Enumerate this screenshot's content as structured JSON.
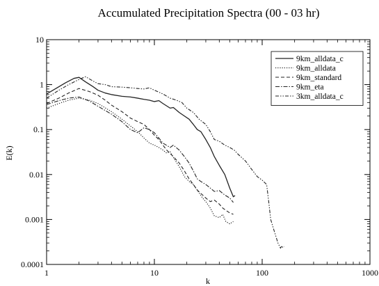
{
  "chart_data": {
    "type": "line",
    "title": "Accumulated Precipitation Spectra (00 - 03 hr)",
    "xlabel": "k",
    "ylabel": "E(k)",
    "xscale": "log",
    "yscale": "log",
    "xlim": [
      1,
      1000
    ],
    "ylim": [
      0.0001,
      10
    ],
    "x_ticks": [
      "1",
      "10",
      "100",
      "1000"
    ],
    "y_ticks": [
      "0.0001",
      "0.001",
      "0.01",
      "0.1",
      "1",
      "10"
    ],
    "grid": false,
    "legend_position": "top-right",
    "series": [
      {
        "name": "9km_alldata_c",
        "style": "solid",
        "points": [
          [
            1,
            0.62
          ],
          [
            1.2,
            0.8
          ],
          [
            1.5,
            1.1
          ],
          [
            1.8,
            1.38
          ],
          [
            2,
            1.45
          ],
          [
            2.3,
            1.15
          ],
          [
            2.7,
            0.9
          ],
          [
            3,
            0.75
          ],
          [
            3.5,
            0.65
          ],
          [
            4,
            0.6
          ],
          [
            5,
            0.55
          ],
          [
            6,
            0.53
          ],
          [
            7,
            0.5
          ],
          [
            8,
            0.47
          ],
          [
            9,
            0.45
          ],
          [
            10,
            0.42
          ],
          [
            11,
            0.44
          ],
          [
            12,
            0.38
          ],
          [
            14,
            0.3
          ],
          [
            15,
            0.31
          ],
          [
            17,
            0.24
          ],
          [
            19,
            0.2
          ],
          [
            21,
            0.17
          ],
          [
            23,
            0.13
          ],
          [
            25,
            0.1
          ],
          [
            27,
            0.09
          ],
          [
            30,
            0.06
          ],
          [
            33,
            0.04
          ],
          [
            36,
            0.025
          ],
          [
            40,
            0.016
          ],
          [
            45,
            0.01
          ],
          [
            50,
            0.005
          ],
          [
            54,
            0.0032
          ],
          [
            56,
            0.0034
          ]
        ]
      },
      {
        "name": "9km_alldata",
        "style": "dotted",
        "points": [
          [
            1,
            0.3
          ],
          [
            1.3,
            0.38
          ],
          [
            1.6,
            0.45
          ],
          [
            2,
            0.5
          ],
          [
            2.5,
            0.45
          ],
          [
            3,
            0.38
          ],
          [
            4,
            0.25
          ],
          [
            5,
            0.17
          ],
          [
            6,
            0.12
          ],
          [
            7,
            0.09
          ],
          [
            8,
            0.065
          ],
          [
            9,
            0.05
          ],
          [
            10,
            0.045
          ],
          [
            11,
            0.04
          ],
          [
            12,
            0.035
          ],
          [
            13,
            0.03
          ],
          [
            14,
            0.032
          ],
          [
            15,
            0.024
          ],
          [
            17,
            0.015
          ],
          [
            19,
            0.009
          ],
          [
            21,
            0.007
          ],
          [
            23,
            0.006
          ],
          [
            25,
            0.0045
          ],
          [
            28,
            0.003
          ],
          [
            30,
            0.0025
          ],
          [
            33,
            0.0018
          ],
          [
            36,
            0.0012
          ],
          [
            40,
            0.0011
          ],
          [
            43,
            0.0013
          ],
          [
            46,
            0.0009
          ],
          [
            50,
            0.0008
          ],
          [
            54,
            0.0009
          ]
        ]
      },
      {
        "name": "9km_standard",
        "style": "dashed",
        "points": [
          [
            1,
            0.38
          ],
          [
            1.3,
            0.5
          ],
          [
            1.6,
            0.65
          ],
          [
            2,
            0.82
          ],
          [
            2.5,
            0.7
          ],
          [
            3,
            0.58
          ],
          [
            3.5,
            0.45
          ],
          [
            4,
            0.35
          ],
          [
            5,
            0.25
          ],
          [
            6,
            0.18
          ],
          [
            7,
            0.15
          ],
          [
            8,
            0.13
          ],
          [
            9,
            0.1
          ],
          [
            10,
            0.075
          ],
          [
            11,
            0.06
          ],
          [
            12,
            0.045
          ],
          [
            13,
            0.035
          ],
          [
            15,
            0.025
          ],
          [
            17,
            0.018
          ],
          [
            19,
            0.012
          ],
          [
            21,
            0.008
          ],
          [
            23,
            0.006
          ],
          [
            25,
            0.0045
          ],
          [
            28,
            0.0035
          ],
          [
            30,
            0.003
          ],
          [
            33,
            0.0025
          ],
          [
            36,
            0.0027
          ],
          [
            40,
            0.0022
          ],
          [
            43,
            0.0018
          ],
          [
            46,
            0.0016
          ],
          [
            50,
            0.0014
          ],
          [
            54,
            0.0013
          ]
        ]
      },
      {
        "name": "9km_eta",
        "style": "dash-dot",
        "points": [
          [
            1,
            0.36
          ],
          [
            1.3,
            0.44
          ],
          [
            1.6,
            0.5
          ],
          [
            2,
            0.53
          ],
          [
            2.5,
            0.43
          ],
          [
            3,
            0.33
          ],
          [
            4,
            0.22
          ],
          [
            5,
            0.15
          ],
          [
            6,
            0.1
          ],
          [
            7,
            0.085
          ],
          [
            8,
            0.11
          ],
          [
            9,
            0.1
          ],
          [
            10,
            0.085
          ],
          [
            11,
            0.065
          ],
          [
            12,
            0.05
          ],
          [
            14,
            0.04
          ],
          [
            15,
            0.045
          ],
          [
            17,
            0.035
          ],
          [
            19,
            0.025
          ],
          [
            21,
            0.018
          ],
          [
            23,
            0.012
          ],
          [
            25,
            0.008
          ],
          [
            27,
            0.007
          ],
          [
            30,
            0.006
          ],
          [
            33,
            0.005
          ],
          [
            36,
            0.0042
          ],
          [
            40,
            0.0044
          ],
          [
            45,
            0.0035
          ],
          [
            50,
            0.003
          ],
          [
            54,
            0.0024
          ]
        ]
      },
      {
        "name": "3km_alldata_c",
        "style": "dash-dot-dot",
        "points": [
          [
            1,
            0.5
          ],
          [
            1.3,
            0.75
          ],
          [
            1.6,
            1.0
          ],
          [
            2,
            1.3
          ],
          [
            2.3,
            1.5
          ],
          [
            2.7,
            1.2
          ],
          [
            3,
            1.05
          ],
          [
            3.5,
            1.0
          ],
          [
            4,
            0.9
          ],
          [
            5,
            0.88
          ],
          [
            6,
            0.85
          ],
          [
            7,
            0.82
          ],
          [
            8,
            0.8
          ],
          [
            9,
            0.85
          ],
          [
            10,
            0.75
          ],
          [
            12,
            0.62
          ],
          [
            14,
            0.5
          ],
          [
            16,
            0.45
          ],
          [
            18,
            0.4
          ],
          [
            20,
            0.3
          ],
          [
            23,
            0.24
          ],
          [
            26,
            0.17
          ],
          [
            30,
            0.13
          ],
          [
            33,
            0.09
          ],
          [
            36,
            0.06
          ],
          [
            40,
            0.055
          ],
          [
            45,
            0.045
          ],
          [
            50,
            0.04
          ],
          [
            55,
            0.035
          ],
          [
            60,
            0.028
          ],
          [
            70,
            0.02
          ],
          [
            80,
            0.013
          ],
          [
            90,
            0.009
          ],
          [
            100,
            0.0075
          ],
          [
            110,
            0.006
          ],
          [
            115,
            0.0025
          ],
          [
            120,
            0.001
          ],
          [
            128,
            0.0006
          ],
          [
            135,
            0.0004
          ],
          [
            140,
            0.0003
          ],
          [
            148,
            0.00023
          ],
          [
            152,
            0.00026
          ],
          [
            155,
            0.00024
          ],
          [
            160,
            0.00025
          ]
        ]
      }
    ]
  }
}
